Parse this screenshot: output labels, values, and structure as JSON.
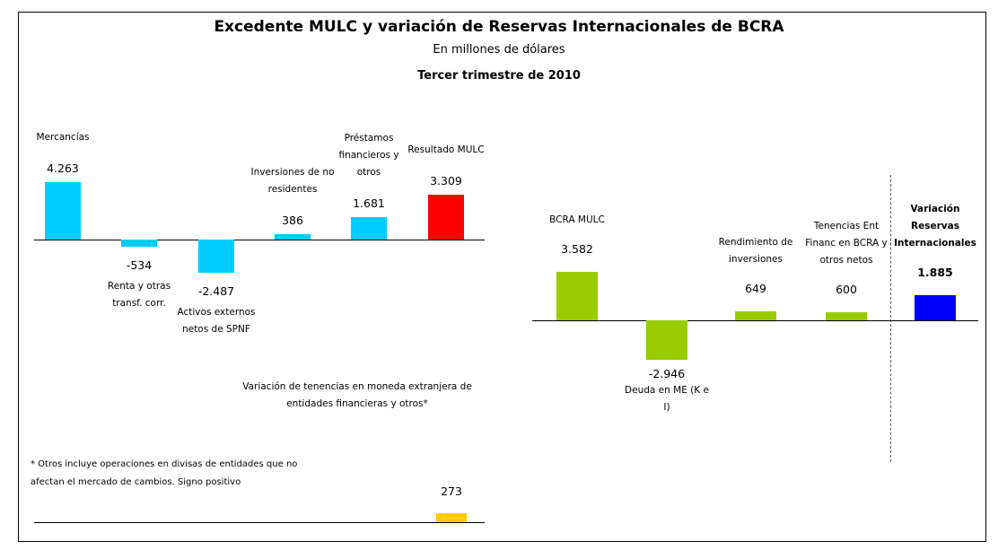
{
  "title": "Excedente MULC y variación de Reservas Internacionales de BCRA",
  "subtitle": "En millones de dólares",
  "period": "Tercer trimestre de 2010",
  "footnote": "* Otros incluye operaciones en divisas de entidades que no afectan el mercado de cambios. Signo positivo",
  "chart_data": [
    {
      "type": "bar",
      "categories": [
        "Mercancías",
        "Renta y otras transf. corr.",
        "Activos externos netos de SPNF",
        "Inversiones de no residentes",
        "Préstamos financieros y otros",
        "Resultado MULC"
      ],
      "values": [
        4263,
        -534,
        -2487,
        386,
        1681,
        3309
      ],
      "value_labels": [
        "4.263",
        "-534",
        "-2.487",
        "386",
        "1.681",
        "3.309"
      ],
      "colors": [
        "#00ccff",
        "#00ccff",
        "#00ccff",
        "#00ccff",
        "#00ccff",
        "#ff0000"
      ]
    },
    {
      "type": "bar",
      "categories": [
        "BCRA MULC",
        "Deuda en ME (K e I)",
        "Rendimiento de inversiones",
        "Tenencias Ent Financ en BCRA y otros netos",
        "Variación Reservas Internacionales"
      ],
      "values": [
        3582,
        -2946,
        649,
        600,
        1885
      ],
      "value_labels": [
        "3.582",
        "-2.946",
        "649",
        "600",
        "1.885"
      ],
      "colors": [
        "#99cc00",
        "#99cc00",
        "#99cc00",
        "#99cc00",
        "#0000ff"
      ]
    },
    {
      "type": "bar",
      "categories": [
        "Variación de tenencias en moneda extranjera de entidades financieras y otros*"
      ],
      "values": [
        273
      ],
      "value_labels": [
        "273"
      ],
      "colors": [
        "#ffcc00"
      ]
    }
  ]
}
